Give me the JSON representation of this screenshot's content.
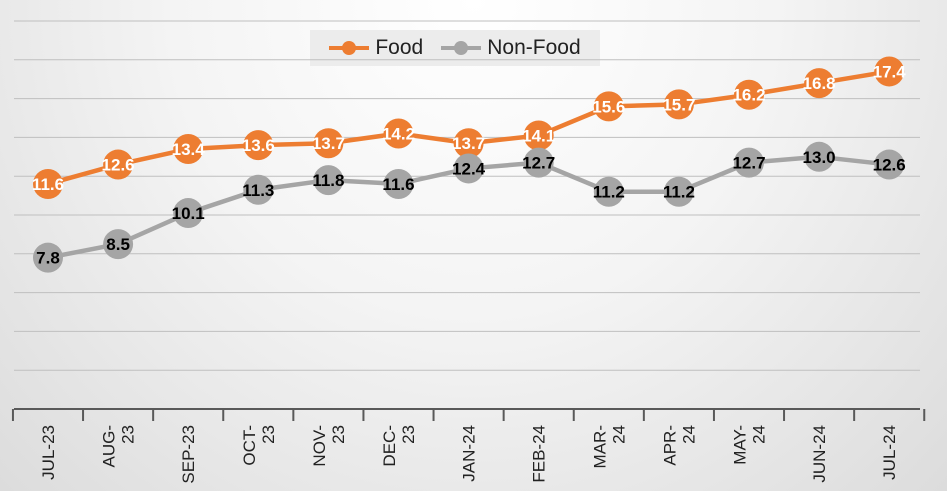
{
  "chart_data": {
    "type": "line",
    "categories": [
      "JUL-23",
      "AUG-23",
      "SEP-23",
      "OCT-23",
      "NOV-23",
      "DEC-23",
      "JAN-24",
      "FEB-24",
      "MAR-24",
      "APR-24",
      "MAY-24",
      "JUN-24",
      "JUL-24"
    ],
    "tick_labels": [
      [
        "JUL-23"
      ],
      [
        "AUG-",
        "23"
      ],
      [
        "SEP-23"
      ],
      [
        "OCT-",
        "23"
      ],
      [
        "NOV-",
        "23"
      ],
      [
        "DEC-",
        "23"
      ],
      [
        "JAN-24"
      ],
      [
        "FEB-24"
      ],
      [
        "MAR-",
        "24"
      ],
      [
        "APR-",
        "24"
      ],
      [
        "MAY-",
        "24"
      ],
      [
        "JUN-24"
      ],
      [
        "JUL-24"
      ]
    ],
    "series": [
      {
        "name": "Food",
        "color": "#ED7D31",
        "label_color": "#ffffff",
        "values": [
          11.6,
          12.6,
          13.4,
          13.6,
          13.7,
          14.2,
          13.7,
          14.1,
          15.6,
          15.7,
          16.2,
          16.8,
          17.4
        ],
        "labels": [
          "11.6",
          "12.6",
          "13.4",
          "13.6",
          "13.7",
          "14.2",
          "13.7",
          "14.1",
          "15.6",
          "15.7",
          "16.2",
          "16.8",
          "17.4"
        ]
      },
      {
        "name": "Non-Food",
        "color": "#A5A5A5",
        "label_color": "#000000",
        "values": [
          7.8,
          8.5,
          10.1,
          11.3,
          11.8,
          11.6,
          12.4,
          12.7,
          11.2,
          11.2,
          12.7,
          13.0,
          12.6
        ],
        "labels": [
          "7.8",
          "8.5",
          "10.1",
          "11.3",
          "11.8",
          "11.6",
          "12.4",
          "12.7",
          "11.2",
          "11.2",
          "12.7",
          "13.0",
          "12.6"
        ]
      }
    ],
    "ylim": [
      0,
      20
    ],
    "grid": true,
    "legend_position": "top",
    "title": "",
    "xlabel": "",
    "ylabel": ""
  }
}
